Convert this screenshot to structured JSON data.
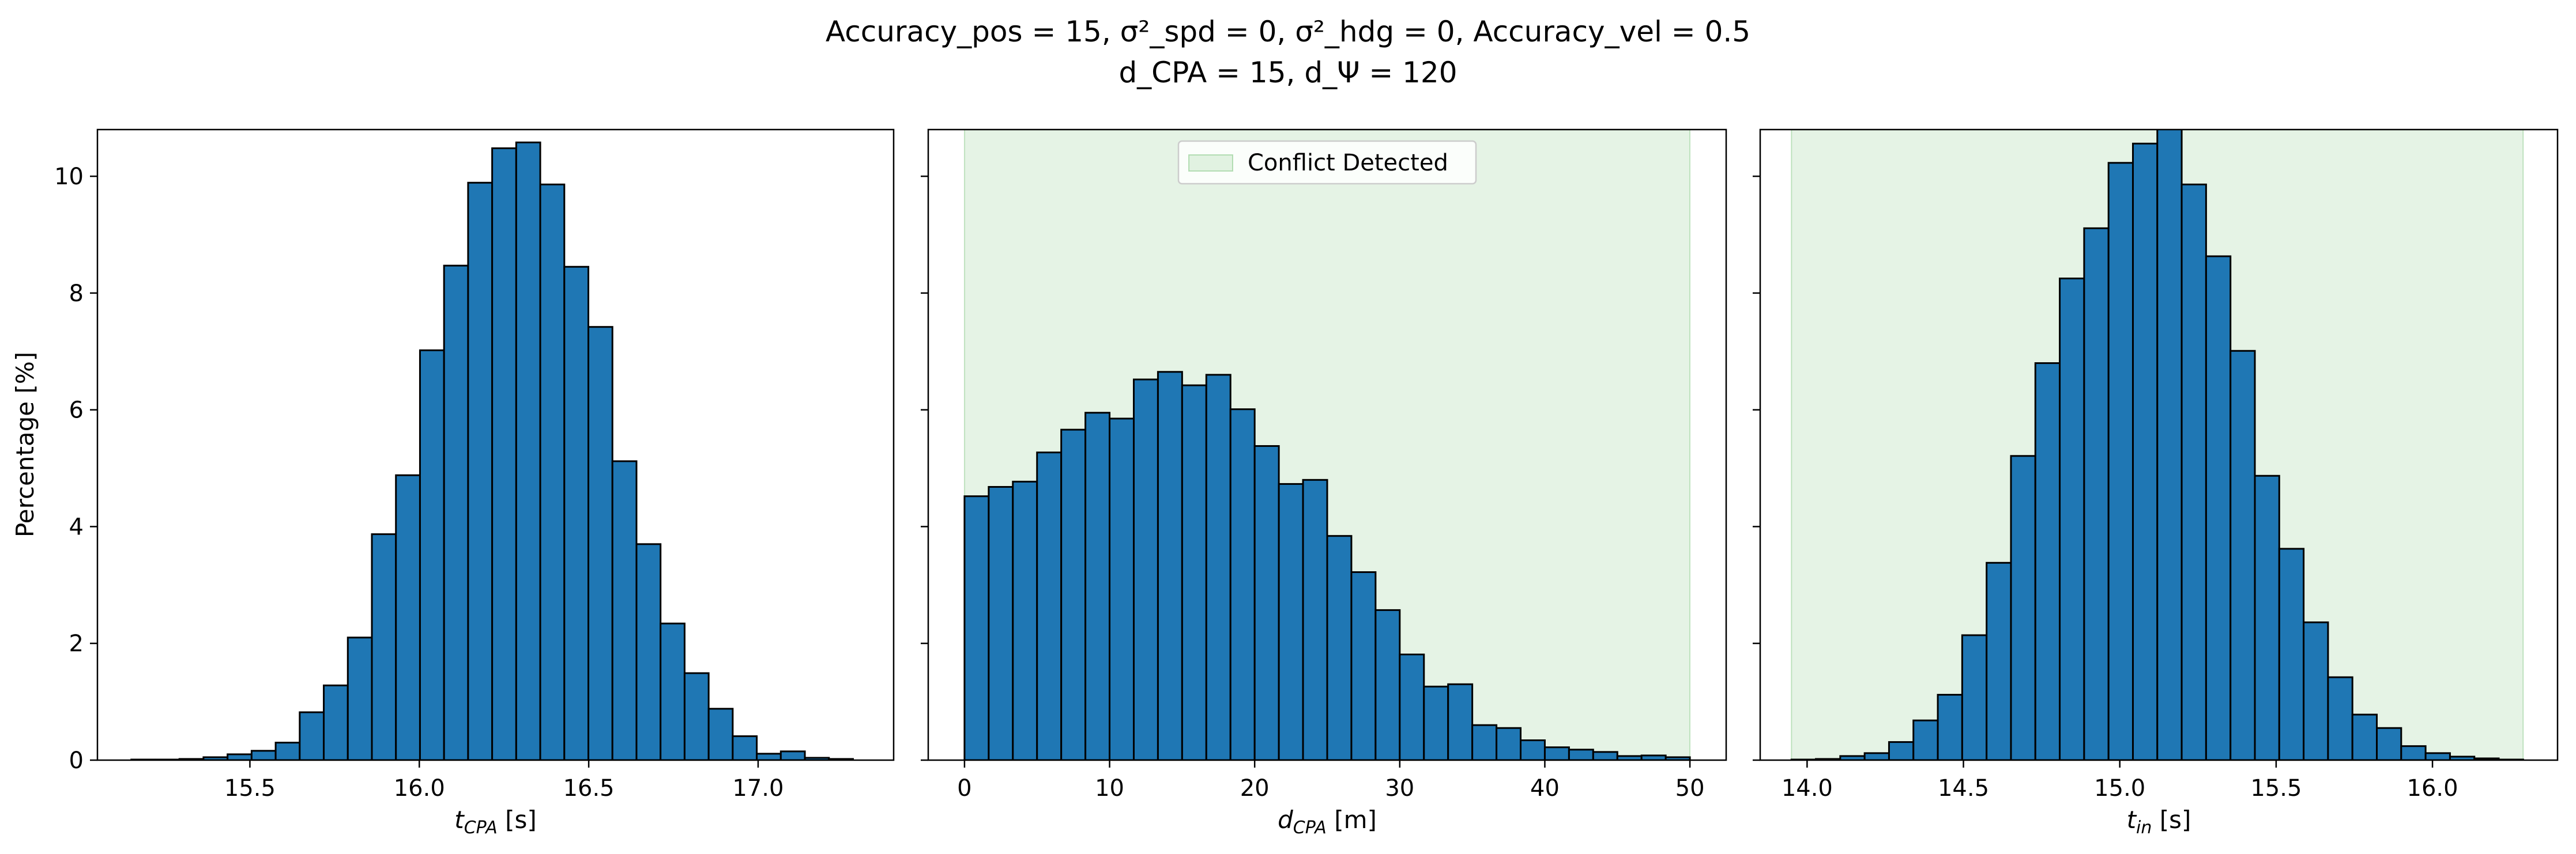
{
  "figure": {
    "title_line1": "Accuracy_pos = 15, σ²_spd = 0, σ²_hdg = 0, Accuracy_vel = 0.5",
    "title_line2": "d_CPA = 15, d_Ψ = 120",
    "ylabel": "Percentage [%]"
  },
  "colors": {
    "bar_fill": "#1f77b4",
    "bar_edge": "#000000",
    "conflict_fill": "#2ca02c",
    "conflict_opacity": 0.12
  },
  "legend": {
    "conflict_label": "Conflict Detected",
    "location": "upper center"
  },
  "chart_data": [
    {
      "type": "bar",
      "title": "",
      "xlabel": "t_CPA [s]",
      "xlim": [
        15.05,
        17.4
      ],
      "ylim": [
        0,
        10.8
      ],
      "xticks": [
        15.5,
        16.0,
        16.5,
        17.0
      ],
      "xtick_labels": [
        "15.5",
        "16.0",
        "16.5",
        "17.0"
      ],
      "yticks": [
        0,
        2,
        4,
        6,
        8,
        10
      ],
      "ytick_labels": [
        "0",
        "2",
        "4",
        "6",
        "8",
        "10"
      ],
      "bin_edges": [
        15.15,
        15.221,
        15.292,
        15.363,
        15.434,
        15.505,
        15.576,
        15.647,
        15.718,
        15.789,
        15.86,
        15.931,
        16.002,
        16.073,
        16.144,
        16.215,
        16.286,
        16.357,
        16.428,
        16.499,
        16.57,
        16.641,
        16.712,
        16.783,
        16.854,
        16.925,
        16.996,
        17.067,
        17.138,
        17.209,
        17.28
      ],
      "values": [
        0.01,
        0.01,
        0.02,
        0.05,
        0.1,
        0.16,
        0.3,
        0.82,
        1.28,
        2.1,
        3.87,
        4.88,
        7.02,
        8.47,
        9.89,
        10.48,
        10.58,
        9.86,
        8.45,
        7.42,
        5.12,
        3.7,
        2.34,
        1.49,
        0.88,
        0.41,
        0.11,
        0.15,
        0.04,
        0.02
      ],
      "conflict_region": null
    },
    {
      "type": "bar",
      "title": "",
      "xlabel": "d_CPA [m]",
      "xlim": [
        -2.5,
        52.5
      ],
      "ylim": [
        0,
        10.8
      ],
      "xticks": [
        0,
        10,
        20,
        30,
        40,
        50
      ],
      "xtick_labels": [
        "0",
        "10",
        "20",
        "30",
        "40",
        "50"
      ],
      "yticks": [
        0,
        2,
        4,
        6,
        8,
        10
      ],
      "ytick_labels": [
        "",
        "",
        "",
        "",
        "",
        ""
      ],
      "bin_edges": [
        0.0,
        1.667,
        3.333,
        5.0,
        6.667,
        8.333,
        10.0,
        11.667,
        13.333,
        15.0,
        16.667,
        18.333,
        20.0,
        21.667,
        23.333,
        25.0,
        26.667,
        28.333,
        30.0,
        31.667,
        33.333,
        35.0,
        36.667,
        38.333,
        40.0,
        41.667,
        43.333,
        45.0,
        46.667,
        48.333,
        50.0
      ],
      "values": [
        4.52,
        4.68,
        4.77,
        5.27,
        5.66,
        5.95,
        5.85,
        6.52,
        6.65,
        6.42,
        6.6,
        6.01,
        5.38,
        4.73,
        4.8,
        3.84,
        3.22,
        2.57,
        1.81,
        1.26,
        1.3,
        0.6,
        0.55,
        0.34,
        0.22,
        0.18,
        0.14,
        0.07,
        0.08,
        0.05
      ],
      "conflict_region": [
        0,
        50
      ]
    },
    {
      "type": "bar",
      "title": "",
      "xlabel": "t_in [s]",
      "xlim": [
        13.85,
        16.4
      ],
      "ylim": [
        0,
        10.8
      ],
      "xticks": [
        14.0,
        14.5,
        15.0,
        15.5,
        16.0
      ],
      "xtick_labels": [
        "14.0",
        "14.5",
        "15.0",
        "15.5",
        "16.0"
      ],
      "yticks": [
        0,
        2,
        4,
        6,
        8,
        10
      ],
      "ytick_labels": [
        "",
        "",
        "",
        "",
        "",
        ""
      ],
      "bin_edges": [
        13.95,
        14.028,
        14.106,
        14.184,
        14.262,
        14.34,
        14.418,
        14.496,
        14.574,
        14.652,
        14.73,
        14.808,
        14.886,
        14.964,
        15.042,
        15.12,
        15.198,
        15.276,
        15.354,
        15.432,
        15.51,
        15.588,
        15.666,
        15.744,
        15.822,
        15.9,
        15.978,
        16.056,
        16.134,
        16.212,
        16.29
      ],
      "values": [
        0.01,
        0.02,
        0.07,
        0.12,
        0.31,
        0.68,
        1.12,
        2.14,
        3.38,
        5.21,
        6.8,
        8.25,
        9.11,
        10.23,
        10.56,
        10.82,
        9.86,
        8.63,
        7.01,
        4.87,
        3.62,
        2.36,
        1.42,
        0.78,
        0.55,
        0.24,
        0.12,
        0.06,
        0.03,
        0.01
      ],
      "conflict_region": [
        13.95,
        16.29
      ]
    }
  ]
}
